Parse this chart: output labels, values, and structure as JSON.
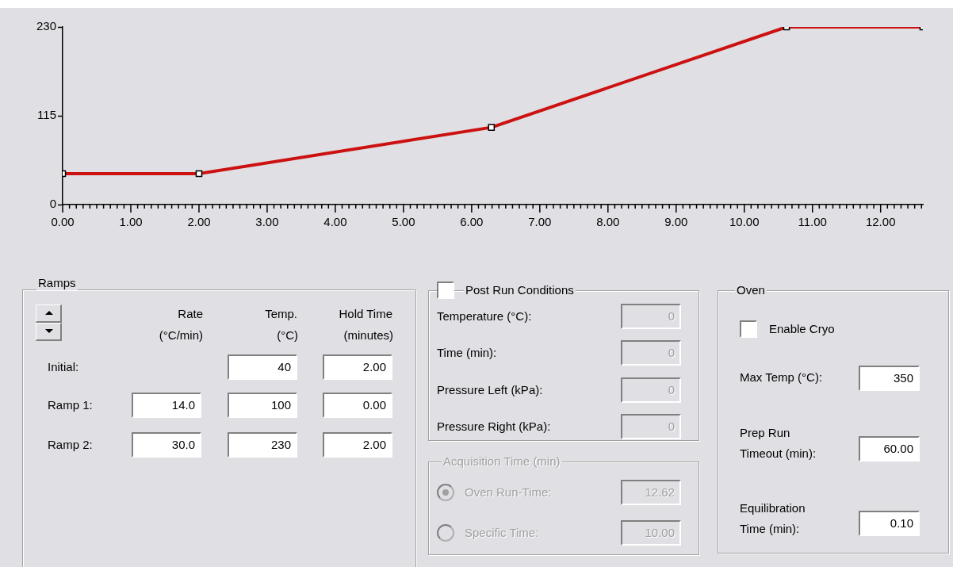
{
  "chart_data": [
    {
      "type": "line",
      "x": [
        0,
        2,
        6.29,
        10.62,
        12.62
      ],
      "series": [
        {
          "color": "#cc1111",
          "values": [
            40,
            40,
            100,
            230,
            230
          ]
        }
      ],
      "xlim": [
        0,
        12.62
      ],
      "ylim": [
        0,
        230
      ],
      "yticks": [
        0,
        115,
        230
      ],
      "xticks": [
        {
          "value": 0,
          "label": "0.00"
        },
        {
          "value": 0.1,
          "label": null
        },
        {
          "value": 0.2,
          "label": null
        },
        {
          "value": 0.3,
          "label": null
        },
        {
          "value": 0.4,
          "label": null
        },
        {
          "value": 0.5,
          "label": null
        },
        {
          "value": 0.6,
          "label": null
        },
        {
          "value": 0.7,
          "label": null
        },
        {
          "value": 0.8,
          "label": null
        },
        {
          "value": 0.9,
          "label": null
        },
        {
          "value": 1,
          "label": "1.00"
        },
        {
          "value": 1.1,
          "label": null
        },
        {
          "value": 1.2,
          "label": null
        },
        {
          "value": 1.3,
          "label": null
        },
        {
          "value": 1.4,
          "label": null
        },
        {
          "value": 1.5,
          "label": null
        },
        {
          "value": 1.6,
          "label": null
        },
        {
          "value": 1.7,
          "label": null
        },
        {
          "value": 1.8,
          "label": null
        },
        {
          "value": 1.9,
          "label": null
        },
        {
          "value": 2,
          "label": "2.00"
        },
        {
          "value": 2.1,
          "label": null
        },
        {
          "value": 2.2,
          "label": null
        },
        {
          "value": 2.3,
          "label": null
        },
        {
          "value": 2.4,
          "label": null
        },
        {
          "value": 2.5,
          "label": null
        },
        {
          "value": 2.6,
          "label": null
        },
        {
          "value": 2.7,
          "label": null
        },
        {
          "value": 2.8,
          "label": null
        },
        {
          "value": 2.9,
          "label": null
        },
        {
          "value": 3,
          "label": "3.00"
        },
        {
          "value": 3.1,
          "label": null
        },
        {
          "value": 3.2,
          "label": null
        },
        {
          "value": 3.3,
          "label": null
        },
        {
          "value": 3.4,
          "label": null
        },
        {
          "value": 3.5,
          "label": null
        },
        {
          "value": 3.6,
          "label": null
        },
        {
          "value": 3.7,
          "label": null
        },
        {
          "value": 3.8,
          "label": null
        },
        {
          "value": 3.9,
          "label": null
        },
        {
          "value": 4,
          "label": "4.00"
        },
        {
          "value": 4.1,
          "label": null
        },
        {
          "value": 4.2,
          "label": null
        },
        {
          "value": 4.3,
          "label": null
        },
        {
          "value": 4.4,
          "label": null
        },
        {
          "value": 4.5,
          "label": null
        },
        {
          "value": 4.6,
          "label": null
        },
        {
          "value": 4.7,
          "label": null
        },
        {
          "value": 4.8,
          "label": null
        },
        {
          "value": 4.9,
          "label": null
        },
        {
          "value": 5,
          "label": "5.00"
        },
        {
          "value": 5.1,
          "label": null
        },
        {
          "value": 5.2,
          "label": null
        },
        {
          "value": 5.3,
          "label": null
        },
        {
          "value": 5.4,
          "label": null
        },
        {
          "value": 5.5,
          "label": null
        },
        {
          "value": 5.6,
          "label": null
        },
        {
          "value": 5.7,
          "label": null
        },
        {
          "value": 5.8,
          "label": null
        },
        {
          "value": 5.9,
          "label": null
        },
        {
          "value": 6,
          "label": "6.00"
        },
        {
          "value": 6.1,
          "label": null
        },
        {
          "value": 6.2,
          "label": null
        },
        {
          "value": 6.3,
          "label": null
        },
        {
          "value": 6.4,
          "label": null
        },
        {
          "value": 6.5,
          "label": null
        },
        {
          "value": 6.6,
          "label": null
        },
        {
          "value": 6.7,
          "label": null
        },
        {
          "value": 6.8,
          "label": null
        },
        {
          "value": 6.9,
          "label": null
        },
        {
          "value": 7,
          "label": "7.00"
        },
        {
          "value": 7.1,
          "label": null
        },
        {
          "value": 7.2,
          "label": null
        },
        {
          "value": 7.3,
          "label": null
        },
        {
          "value": 7.4,
          "label": null
        },
        {
          "value": 7.5,
          "label": null
        },
        {
          "value": 7.6,
          "label": null
        },
        {
          "value": 7.7,
          "label": null
        },
        {
          "value": 7.8,
          "label": null
        },
        {
          "value": 7.9,
          "label": null
        },
        {
          "value": 8,
          "label": "8.00"
        },
        {
          "value": 8.1,
          "label": null
        },
        {
          "value": 8.2,
          "label": null
        },
        {
          "value": 8.3,
          "label": null
        },
        {
          "value": 8.4,
          "label": null
        },
        {
          "value": 8.5,
          "label": null
        },
        {
          "value": 8.6,
          "label": null
        },
        {
          "value": 8.7,
          "label": null
        },
        {
          "value": 8.8,
          "label": null
        },
        {
          "value": 8.9,
          "label": null
        },
        {
          "value": 9,
          "label": "9.00"
        },
        {
          "value": 9.1,
          "label": null
        },
        {
          "value": 9.2,
          "label": null
        },
        {
          "value": 9.3,
          "label": null
        },
        {
          "value": 9.4,
          "label": null
        },
        {
          "value": 9.5,
          "label": null
        },
        {
          "value": 9.6,
          "label": null
        },
        {
          "value": 9.7,
          "label": null
        },
        {
          "value": 9.8,
          "label": null
        },
        {
          "value": 9.9,
          "label": null
        },
        {
          "value": 10,
          "label": "10.00"
        },
        {
          "value": 10.1,
          "label": null
        },
        {
          "value": 10.2,
          "label": null
        },
        {
          "value": 10.3,
          "label": null
        },
        {
          "value": 10.4,
          "label": null
        },
        {
          "value": 10.5,
          "label": null
        },
        {
          "value": 10.6,
          "label": null
        },
        {
          "value": 10.7,
          "label": null
        },
        {
          "value": 10.8,
          "label": null
        },
        {
          "value": 10.9,
          "label": null
        },
        {
          "value": 11,
          "label": "11.00"
        },
        {
          "value": 11.1,
          "label": null
        },
        {
          "value": 11.2,
          "label": null
        },
        {
          "value": 11.3,
          "label": null
        },
        {
          "value": 11.4,
          "label": null
        },
        {
          "value": 11.5,
          "label": null
        },
        {
          "value": 11.6,
          "label": null
        },
        {
          "value": 11.7,
          "label": null
        },
        {
          "value": 11.8,
          "label": null
        },
        {
          "value": 11.9,
          "label": null
        },
        {
          "value": 12,
          "label": "12.00"
        },
        {
          "value": 12.1,
          "label": null
        },
        {
          "value": 12.2,
          "label": null
        },
        {
          "value": 12.3,
          "label": null
        },
        {
          "value": 12.4,
          "label": null
        },
        {
          "value": 12.5,
          "label": null
        },
        {
          "value": 12.6,
          "label": null
        }
      ],
      "marker": "square",
      "line_style": "solid"
    },
    {
      "type": "other",
      "title": "Ramps",
      "annotations": [
        "Rate",
        "(°C/min)",
        "Temp.",
        "(°C)",
        "Hold Time",
        "(minutes)",
        "Initial:",
        "40",
        "2.00",
        "Ramp 1:",
        "14.0",
        "100",
        "0.00",
        "Ramp 2:",
        "30.0",
        "230",
        "2.00"
      ]
    },
    {
      "type": "other",
      "title": "Post Run Conditions",
      "annotations": [
        "Temperature (°C):",
        "0",
        "Time (min):",
        "0",
        "Pressure Left (kPa):",
        "0",
        "Pressure Right (kPa):",
        "0"
      ]
    },
    {
      "type": "other",
      "title": "Acquisition Time (min)",
      "annotations": [
        "Oven Run-Time:",
        "12.62",
        "Specific Time:",
        "10.00"
      ]
    },
    {
      "type": "other",
      "title": "Oven",
      "annotations": [
        "Enable Cryo",
        "Max Temp (°C):",
        "350",
        "Prep Run Timeout (min):",
        "60.00",
        "Equilibration Time (min):",
        "0.10"
      ]
    }
  ]
}
